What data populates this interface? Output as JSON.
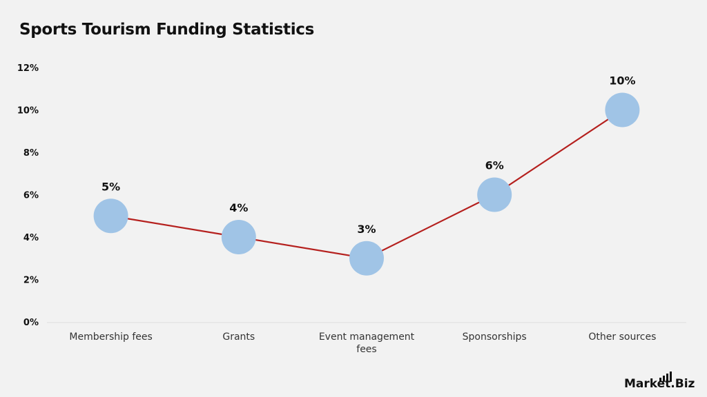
{
  "chart_data": {
    "type": "line",
    "title": "Sports Tourism Funding Statistics",
    "categories": [
      "Membership fees",
      "Grants",
      "Event management fees",
      "Sponsorships",
      "Other sources"
    ],
    "category_lines": [
      [
        "Membership fees"
      ],
      [
        "Grants"
      ],
      [
        "Event management",
        "fees"
      ],
      [
        "Sponsorships"
      ],
      [
        "Other sources"
      ]
    ],
    "values": [
      5,
      4,
      3,
      6,
      10
    ],
    "data_labels": [
      "5%",
      "4%",
      "3%",
      "6%",
      "10%"
    ],
    "ylim": [
      0,
      12
    ],
    "yticks": [
      0,
      2,
      4,
      6,
      8,
      10,
      12
    ],
    "ytick_labels": [
      "0%",
      "2%",
      "4%",
      "6%",
      "8%",
      "10%",
      "12%"
    ],
    "grid": false,
    "line_color": "#b5201e",
    "marker_color": "#a0c4e6"
  },
  "brand": {
    "name": "Market.Biz",
    "part1": "Market",
    "dot": ".",
    "part2": "Biz"
  }
}
